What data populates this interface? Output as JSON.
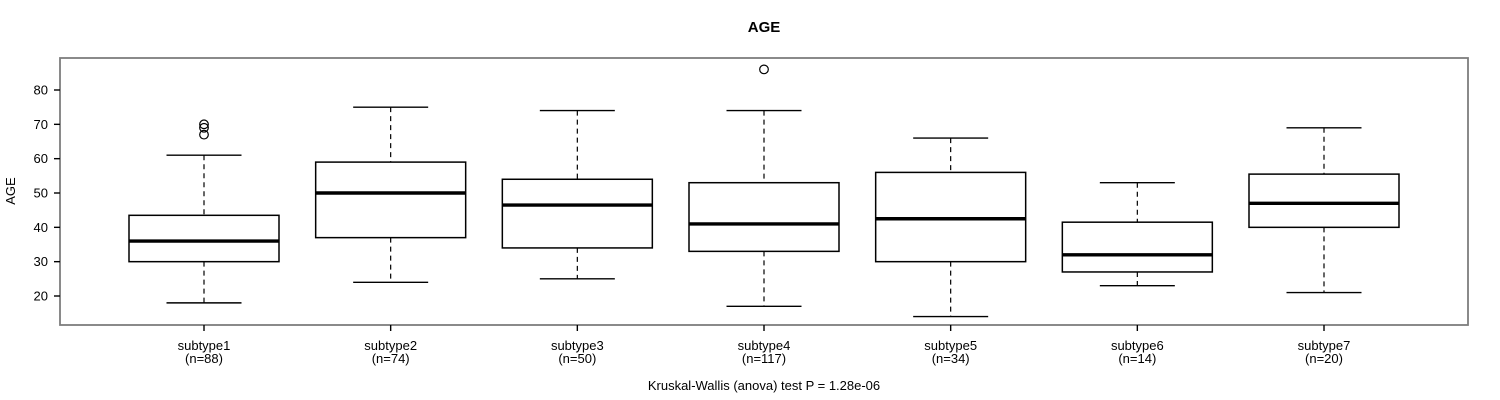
{
  "figure": {
    "title": "AGE",
    "y_axis_label": "AGE",
    "caption": "Kruskal-Wallis (anova) test P = 1.28e-06"
  },
  "chart_data": {
    "type": "boxplot",
    "title": "AGE",
    "xlabel": "",
    "ylabel": "AGE",
    "yticks": [
      20,
      30,
      40,
      50,
      60,
      70,
      80
    ],
    "ylim": [
      11.5,
      89.5
    ],
    "grid": false,
    "legend": null,
    "caption": "Kruskal-Wallis (anova) test P = 1.28e-06",
    "colors": {
      "box_fill": "#ffffff",
      "line": "#000000",
      "frame": "#7d7d7d"
    },
    "groups": [
      {
        "label": "subtype1",
        "n_label": "(n=88)",
        "n": 88,
        "whisker_low": 18,
        "q1": 30,
        "median": 36,
        "q3": 43.5,
        "whisker_high": 61,
        "outliers": [
          67,
          69,
          70
        ]
      },
      {
        "label": "subtype2",
        "n_label": "(n=74)",
        "n": 74,
        "whisker_low": 24,
        "q1": 37,
        "median": 50,
        "q3": 59,
        "whisker_high": 75,
        "outliers": []
      },
      {
        "label": "subtype3",
        "n_label": "(n=50)",
        "n": 50,
        "whisker_low": 25,
        "q1": 34,
        "median": 46.5,
        "q3": 54,
        "whisker_high": 74,
        "outliers": []
      },
      {
        "label": "subtype4",
        "n_label": "(n=117)",
        "n": 117,
        "whisker_low": 17,
        "q1": 33,
        "median": 41,
        "q3": 53,
        "whisker_high": 74,
        "outliers": [
          86
        ]
      },
      {
        "label": "subtype5",
        "n_label": "(n=34)",
        "n": 34,
        "whisker_low": 14,
        "q1": 30,
        "median": 42.5,
        "q3": 56,
        "whisker_high": 66,
        "outliers": []
      },
      {
        "label": "subtype6",
        "n_label": "(n=14)",
        "n": 14,
        "whisker_low": 23,
        "q1": 27,
        "median": 32,
        "q3": 41.5,
        "whisker_high": 53,
        "outliers": []
      },
      {
        "label": "subtype7",
        "n_label": "(n=20)",
        "n": 20,
        "whisker_low": 21,
        "q1": 40,
        "median": 47,
        "q3": 55.5,
        "whisker_high": 69,
        "outliers": []
      }
    ]
  }
}
